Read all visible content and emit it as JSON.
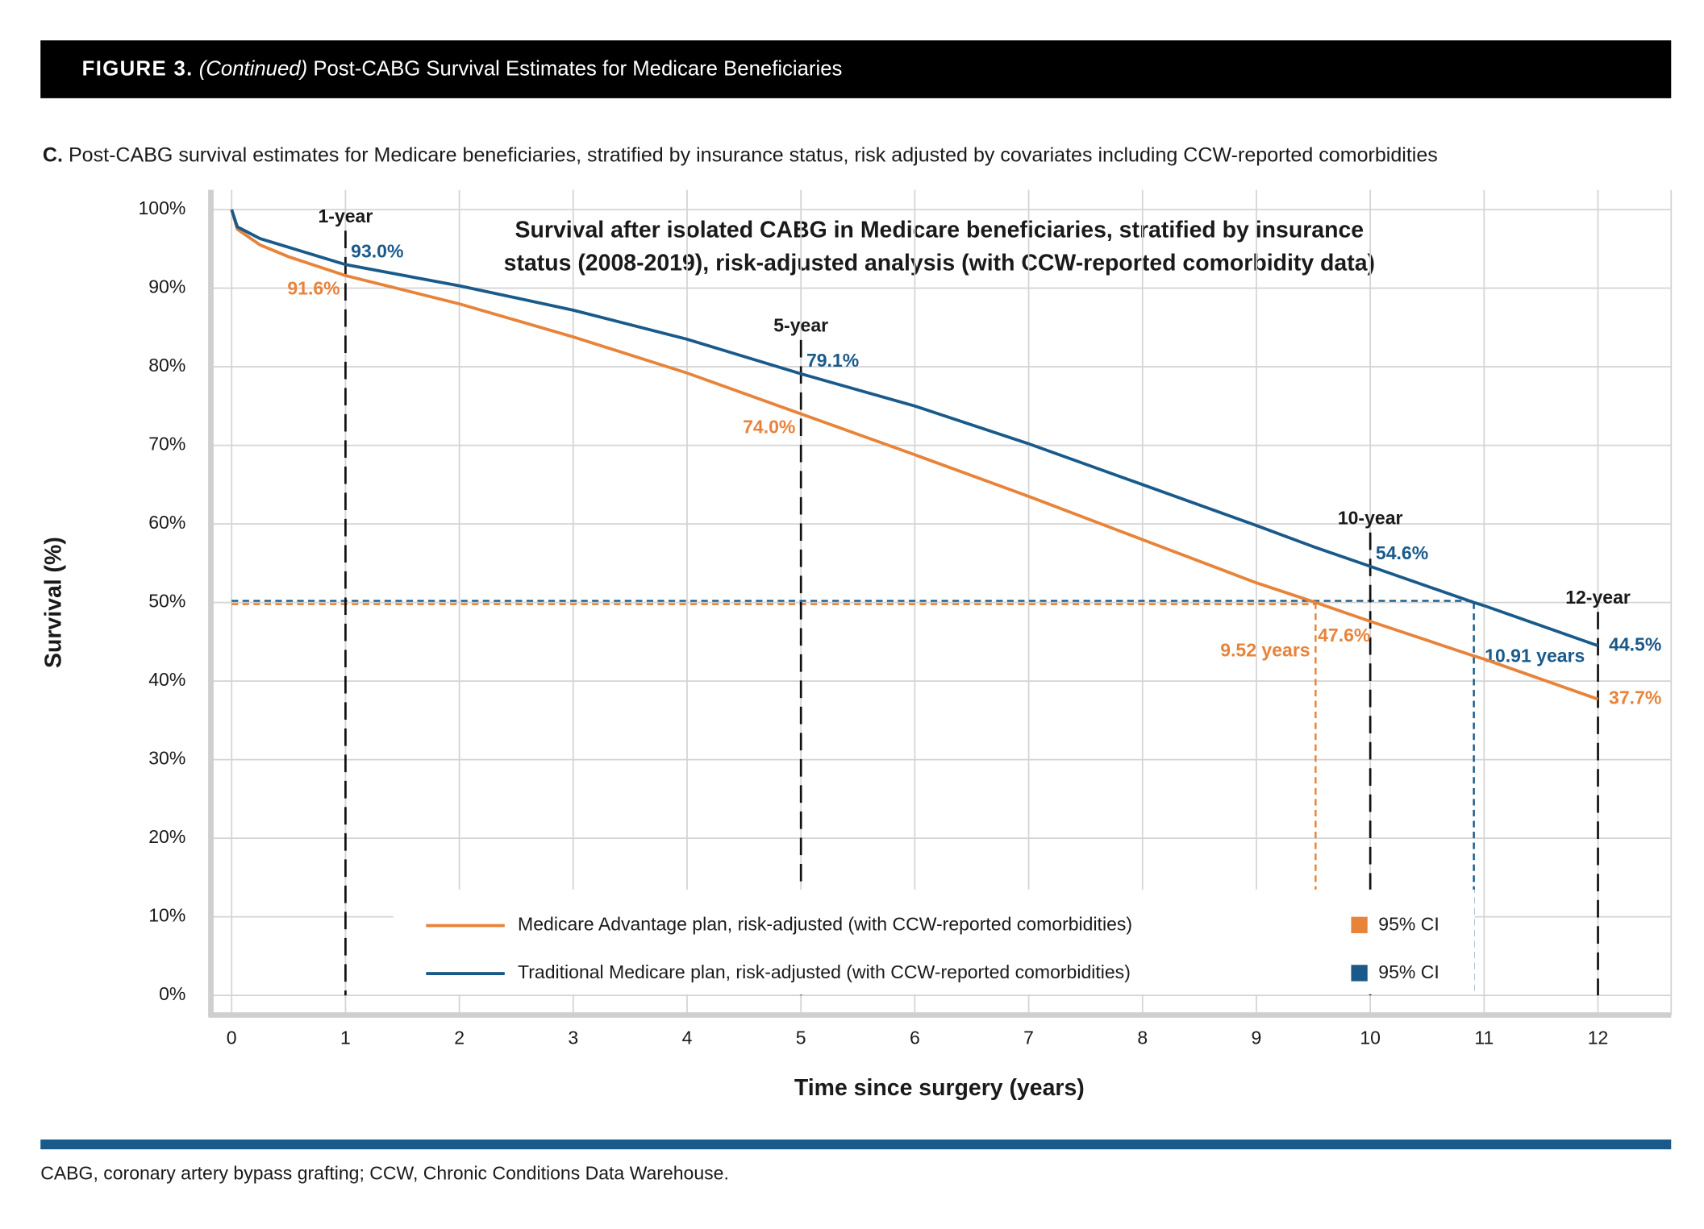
{
  "header": {
    "figure": "FIGURE 3.",
    "continued": "(Continued)",
    "title": "Post-CABG Survival Estimates for Medicare Beneficiaries"
  },
  "panel": {
    "letter": "C.",
    "caption": "Post-CABG survival estimates for Medicare beneficiaries, stratified by insurance status, risk adjusted by covariates including CCW-reported comorbidities"
  },
  "chart_data": {
    "type": "line",
    "title": [
      "Survival after isolated CABG in Medicare beneficiaries, stratified by insurance",
      "status (2008-2019), risk-adjusted analysis (with CCW-reported comorbidity data)"
    ],
    "x_label": "Time since surgery (years)",
    "y_label": "Survival (%)",
    "x": [
      0,
      0.05,
      0.25,
      0.5,
      1,
      2,
      3,
      4,
      5,
      6,
      7,
      8,
      9,
      9.52,
      10,
      10.91,
      11,
      12
    ],
    "series": [
      {
        "name": "Medicare Advantage plan, risk-adjusted (with CCW-reported comorbidities)",
        "color": "#e8833a",
        "ci_label": "95% CI",
        "values": [
          100,
          97.5,
          95.5,
          94,
          91.6,
          88,
          83.8,
          79.2,
          74.0,
          68.8,
          63.5,
          58,
          52.5,
          50,
          47.6,
          43.2,
          42.8,
          37.7
        ],
        "value_labels": [
          null,
          null,
          null,
          null,
          "91.6%",
          null,
          null,
          null,
          "74.0%",
          null,
          null,
          null,
          null,
          null,
          "47.6%",
          null,
          null,
          "37.7%"
        ]
      },
      {
        "name": "Traditional Medicare plan, risk-adjusted (with CCW-reported comorbidities)",
        "color": "#1a5a8a",
        "ci_label": "95% CI",
        "values": [
          100,
          97.8,
          96.3,
          95.2,
          93.0,
          90.3,
          87.2,
          83.5,
          79.1,
          75,
          70.2,
          65,
          59.8,
          57,
          54.6,
          50,
          49.6,
          44.5
        ],
        "value_labels": [
          null,
          null,
          null,
          null,
          "93.0%",
          null,
          null,
          null,
          "79.1%",
          null,
          null,
          null,
          null,
          null,
          "54.6%",
          null,
          null,
          "44.5%"
        ]
      }
    ],
    "milestones": [
      {
        "value": 1,
        "label": "1-year"
      },
      {
        "value": 5,
        "label": "5-year"
      },
      {
        "value": 10,
        "label": "10-year"
      },
      {
        "value": 12,
        "label": "12-year"
      }
    ],
    "medians": [
      {
        "value": 9.52,
        "label": "9.52 years",
        "series": 0,
        "level": 50
      },
      {
        "value": 10.91,
        "label": "10.91 years",
        "series": 1,
        "level": 50
      }
    ],
    "xlim": [
      0,
      12
    ],
    "xticks": [
      0,
      1,
      2,
      3,
      4,
      5,
      6,
      7,
      8,
      9,
      10,
      11,
      12
    ],
    "ylim": [
      0,
      100
    ],
    "yticks": [
      {
        "value": 0,
        "label": "0%"
      },
      {
        "value": 10,
        "label": "10%"
      },
      {
        "value": 20,
        "label": "20%"
      },
      {
        "value": 30,
        "label": "30%"
      },
      {
        "value": 40,
        "label": "40%"
      },
      {
        "value": 50,
        "label": "50%"
      },
      {
        "value": 60,
        "label": "60%"
      },
      {
        "value": 70,
        "label": "70%"
      },
      {
        "value": 80,
        "label": "80%"
      },
      {
        "value": 90,
        "label": "90%"
      },
      {
        "value": 100,
        "label": "100%"
      }
    ],
    "grid": true
  },
  "footnote": "CABG, coronary artery bypass grafting; CCW, Chronic Conditions Data Warehouse."
}
